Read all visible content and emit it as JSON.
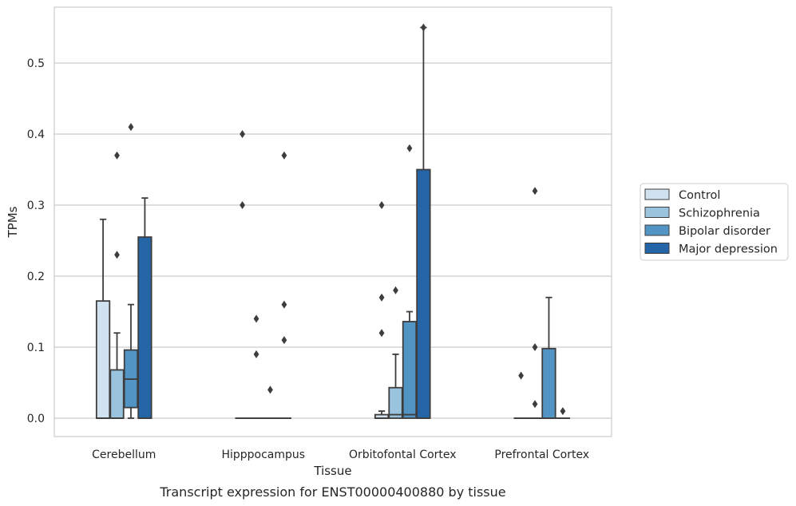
{
  "chart_data": {
    "type": "box",
    "title": "",
    "caption": "Transcript expression for ENST00000400880 by tissue",
    "xlabel": "Tissue",
    "ylabel": "TPMs",
    "ylim": [
      -0.026,
      0.58
    ],
    "yticks": [
      "0.0",
      "0.1",
      "0.2",
      "0.3",
      "0.4",
      "0.5"
    ],
    "grid": true,
    "legend_position": "right",
    "categories": [
      "Cerebellum",
      "Hipppocampus",
      "Orbitofontal Cortex",
      "Prefrontal Cortex"
    ],
    "series": [
      {
        "name": "Control",
        "color": "#d0e1f0",
        "boxes": [
          {
            "q1": 0.0,
            "median": 0.0,
            "q3": 0.165,
            "whisker_low": 0.0,
            "whisker_high": 0.28,
            "outliers": []
          },
          {
            "q1": 0.0,
            "median": 0.0,
            "q3": 0.0,
            "whisker_low": 0.0,
            "whisker_high": 0.0,
            "outliers": [
              0.3,
              0.4
            ]
          },
          {
            "q1": 0.0,
            "median": 0.0,
            "q3": 0.005,
            "whisker_low": 0.0,
            "whisker_high": 0.01,
            "outliers": [
              0.12,
              0.17,
              0.3
            ]
          },
          {
            "q1": 0.0,
            "median": 0.0,
            "q3": 0.0,
            "whisker_low": 0.0,
            "whisker_high": 0.0,
            "outliers": [
              0.06
            ]
          }
        ]
      },
      {
        "name": "Schizophrenia",
        "color": "#9ac4dd",
        "boxes": [
          {
            "q1": 0.0,
            "median": 0.0,
            "q3": 0.068,
            "whisker_low": 0.0,
            "whisker_high": 0.12,
            "outliers": [
              0.23,
              0.37
            ]
          },
          {
            "q1": 0.0,
            "median": 0.0,
            "q3": 0.0,
            "whisker_low": 0.0,
            "whisker_high": 0.0,
            "outliers": [
              0.09,
              0.14
            ]
          },
          {
            "q1": 0.0,
            "median": 0.005,
            "q3": 0.043,
            "whisker_low": 0.0,
            "whisker_high": 0.09,
            "outliers": [
              0.18
            ]
          },
          {
            "q1": 0.0,
            "median": 0.0,
            "q3": 0.0,
            "whisker_low": 0.0,
            "whisker_high": 0.0,
            "outliers": [
              0.02,
              0.1,
              0.32
            ]
          }
        ]
      },
      {
        "name": "Bipolar disorder",
        "color": "#5295c4",
        "boxes": [
          {
            "q1": 0.015,
            "median": 0.055,
            "q3": 0.096,
            "whisker_low": 0.0,
            "whisker_high": 0.16,
            "outliers": [
              0.41
            ]
          },
          {
            "q1": 0.0,
            "median": 0.0,
            "q3": 0.0,
            "whisker_low": 0.0,
            "whisker_high": 0.0,
            "outliers": [
              0.04
            ]
          },
          {
            "q1": 0.0,
            "median": 0.005,
            "q3": 0.136,
            "whisker_low": 0.0,
            "whisker_high": 0.15,
            "outliers": [
              0.38
            ]
          },
          {
            "q1": 0.0,
            "median": 0.0,
            "q3": 0.098,
            "whisker_low": 0.0,
            "whisker_high": 0.17,
            "outliers": []
          }
        ]
      },
      {
        "name": "Major depression",
        "color": "#2465a8",
        "boxes": [
          {
            "q1": 0.0,
            "median": 0.0,
            "q3": 0.255,
            "whisker_low": 0.0,
            "whisker_high": 0.31,
            "outliers": []
          },
          {
            "q1": 0.0,
            "median": 0.0,
            "q3": 0.0,
            "whisker_low": 0.0,
            "whisker_high": 0.0,
            "outliers": [
              0.11,
              0.16,
              0.37
            ]
          },
          {
            "q1": 0.0,
            "median": 0.0,
            "q3": 0.35,
            "whisker_low": 0.0,
            "whisker_high": 0.55,
            "outliers": [
              0.55
            ]
          },
          {
            "q1": 0.0,
            "median": 0.0,
            "q3": 0.0,
            "whisker_low": 0.0,
            "whisker_high": 0.0,
            "outliers": [
              0.01
            ]
          }
        ]
      }
    ]
  }
}
